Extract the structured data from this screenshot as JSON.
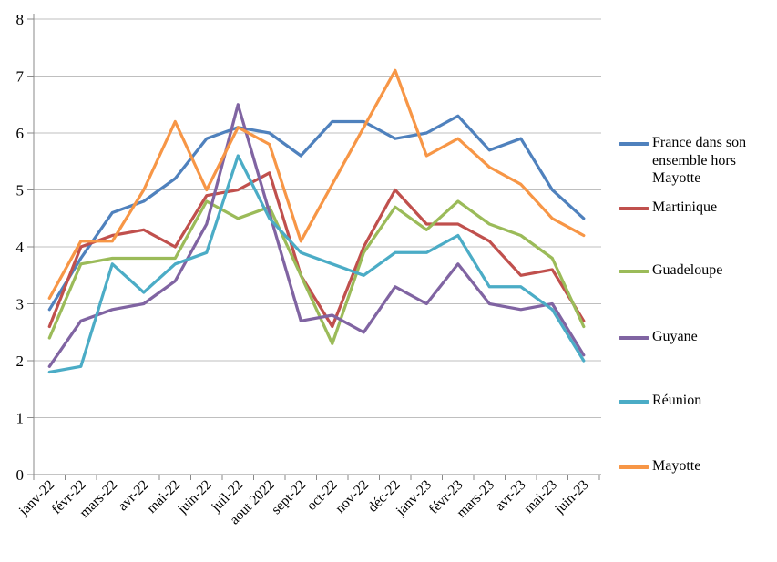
{
  "chart_data": {
    "type": "line",
    "title": "",
    "xlabel": "",
    "ylabel": "",
    "ylim": [
      0,
      8
    ],
    "ytick_step": 1,
    "yticks": [
      "0",
      "1",
      "2",
      "3",
      "4",
      "5",
      "6",
      "7",
      "8"
    ],
    "grid": true,
    "legend_position": "right",
    "categories": [
      "janv-22",
      "févr-22",
      "mars-22",
      "avr-22",
      "mai-22",
      "juin-22",
      "juil-22",
      "aout 2022",
      "sept-22",
      "oct-22",
      "nov-22",
      "déc-22",
      "janv-23",
      "févr-23",
      "mars-23",
      "avr-23",
      "mai-23",
      "juin-23"
    ],
    "series": [
      {
        "name": "France dans son ensemble hors Mayotte",
        "color": "#4F81BD",
        "values": [
          2.9,
          3.8,
          4.6,
          4.8,
          5.2,
          5.9,
          6.1,
          6.0,
          5.6,
          6.2,
          6.2,
          5.9,
          6.0,
          6.3,
          5.7,
          5.9,
          5.0,
          4.5
        ]
      },
      {
        "name": "Martinique",
        "color": "#C0504D",
        "values": [
          2.6,
          4.0,
          4.2,
          4.3,
          4.0,
          4.9,
          5.0,
          5.3,
          3.5,
          2.6,
          4.0,
          5.0,
          4.4,
          4.4,
          4.1,
          3.5,
          3.6,
          2.7
        ]
      },
      {
        "name": "Guadeloupe",
        "color": "#9BBB59",
        "values": [
          2.4,
          3.7,
          3.8,
          3.8,
          3.8,
          4.8,
          4.5,
          4.7,
          3.5,
          2.3,
          3.9,
          4.7,
          4.3,
          4.8,
          4.4,
          4.2,
          3.8,
          2.6
        ]
      },
      {
        "name": "Guyane",
        "color": "#8064A2",
        "values": [
          1.9,
          2.7,
          2.9,
          3.0,
          3.4,
          4.4,
          6.5,
          4.6,
          2.7,
          2.8,
          2.5,
          3.3,
          3.0,
          3.7,
          3.0,
          2.9,
          3.0,
          2.1
        ]
      },
      {
        "name": "Réunion",
        "color": "#4BACC6",
        "values": [
          1.8,
          1.9,
          3.7,
          3.2,
          3.7,
          3.9,
          5.6,
          4.5,
          3.9,
          3.7,
          3.5,
          3.9,
          3.9,
          4.2,
          3.3,
          3.3,
          2.9,
          2.0
        ]
      },
      {
        "name": "Mayotte",
        "color": "#F79646",
        "values": [
          3.1,
          4.1,
          4.1,
          5.0,
          6.2,
          5.0,
          6.1,
          5.8,
          4.1,
          5.1,
          6.1,
          7.1,
          5.6,
          5.9,
          5.4,
          5.1,
          4.5,
          4.2
        ]
      }
    ],
    "gridline_color": "#BFBFBF",
    "axis_color": "#898989"
  }
}
